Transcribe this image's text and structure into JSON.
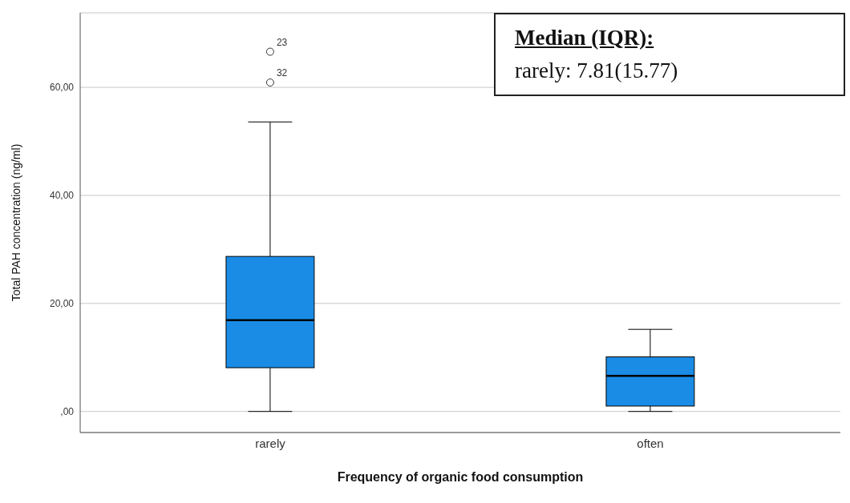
{
  "chart_data": {
    "type": "box",
    "xlabel": "Frequency of organic food consumption",
    "ylabel": "Total PAH concentration (ng/ml)",
    "categories": [
      "rarely",
      "often"
    ],
    "series": [
      {
        "color": "#1a8ce6",
        "boxes": [
          {
            "low": 0,
            "q1": 8.1,
            "median": 16.9,
            "q3": 28.7,
            "high": 53.6,
            "outliers": [
              66.6,
              60.9
            ]
          },
          {
            "low": 0,
            "q1": 1.0,
            "median": 6.6,
            "q3": 10.1,
            "high": 15.2
          }
        ]
      }
    ],
    "ylim": [
      -3.9,
      73.8
    ],
    "yticks": [
      {
        "value": 0,
        "label": ",00"
      },
      {
        "value": 20,
        "label": "20,00"
      },
      {
        "value": 40,
        "label": "40,00"
      },
      {
        "value": 60,
        "label": "60,00"
      }
    ],
    "grid": "y",
    "annotations": [
      "Median (IQR):",
      "rarely: 7.81(15.77)",
      "23",
      "32"
    ]
  }
}
